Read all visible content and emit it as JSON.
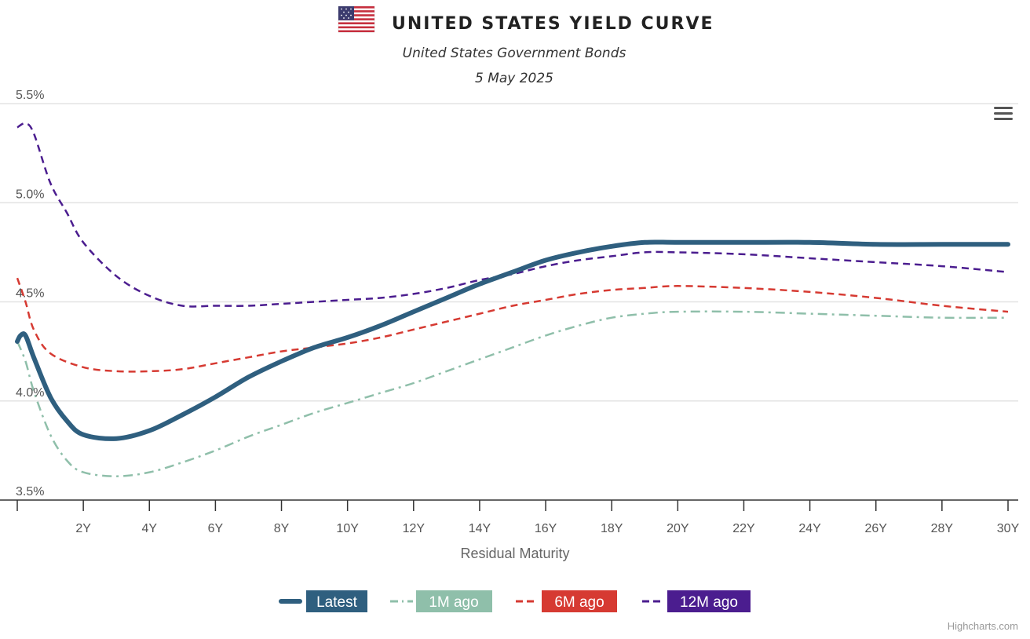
{
  "chart_data": {
    "type": "line",
    "title": "UNITED STATES YIELD CURVE",
    "subtitle": "United States Government Bonds",
    "date": "5 May 2025",
    "xlabel": "Residual Maturity",
    "ylabel": "",
    "xlim": [
      0,
      30
    ],
    "ylim": [
      3.5,
      5.5
    ],
    "x_ticks": [
      2,
      4,
      6,
      8,
      10,
      12,
      14,
      16,
      18,
      20,
      22,
      24,
      26,
      28,
      30
    ],
    "x_tick_labels": [
      "2Y",
      "4Y",
      "6Y",
      "8Y",
      "10Y",
      "12Y",
      "14Y",
      "16Y",
      "18Y",
      "20Y",
      "22Y",
      "24Y",
      "26Y",
      "28Y",
      "30Y"
    ],
    "y_ticks": [
      3.5,
      4.0,
      4.5,
      5.0,
      5.5
    ],
    "y_tick_labels": [
      "3.5%",
      "4.0%",
      "4.5%",
      "5.0%",
      "5.5%"
    ],
    "grid": "horizontal",
    "legend_position": "bottom-center",
    "series": [
      {
        "name": "Latest",
        "color": "#2f5f7f",
        "style": "solid",
        "x": [
          0,
          0.1,
          0.25,
          0.5,
          1,
          1.5,
          2,
          3,
          4,
          5,
          6,
          7,
          8,
          9,
          10,
          11,
          12,
          13,
          14,
          15,
          16,
          17,
          18,
          19,
          20,
          22,
          24,
          26,
          28,
          30
        ],
        "y": [
          4.3,
          4.33,
          4.33,
          4.22,
          4.02,
          3.9,
          3.83,
          3.81,
          3.85,
          3.93,
          4.02,
          4.12,
          4.2,
          4.27,
          4.32,
          4.38,
          4.45,
          4.52,
          4.59,
          4.65,
          4.71,
          4.75,
          4.78,
          4.8,
          4.8,
          4.8,
          4.8,
          4.79,
          4.79,
          4.79
        ]
      },
      {
        "name": "1M ago",
        "color": "#8fbfaa",
        "style": "dash-dot",
        "x": [
          0,
          0.25,
          0.5,
          1,
          1.5,
          2,
          3,
          4,
          5,
          6,
          7,
          8,
          9,
          10,
          11,
          12,
          13,
          14,
          15,
          16,
          17,
          18,
          19,
          20,
          22,
          24,
          26,
          28,
          30
        ],
        "y": [
          4.3,
          4.2,
          4.05,
          3.83,
          3.7,
          3.64,
          3.62,
          3.64,
          3.69,
          3.75,
          3.82,
          3.88,
          3.94,
          3.99,
          4.04,
          4.09,
          4.15,
          4.21,
          4.27,
          4.33,
          4.38,
          4.42,
          4.44,
          4.45,
          4.45,
          4.44,
          4.43,
          4.42,
          4.42
        ]
      },
      {
        "name": "6M ago",
        "color": "#d63a32",
        "style": "dash",
        "x": [
          0,
          0.25,
          0.5,
          1,
          2,
          3,
          4,
          5,
          6,
          7,
          8,
          9,
          10,
          11,
          12,
          13,
          14,
          15,
          16,
          17,
          18,
          19,
          20,
          22,
          24,
          26,
          28,
          30
        ],
        "y": [
          4.62,
          4.5,
          4.36,
          4.24,
          4.17,
          4.15,
          4.15,
          4.16,
          4.19,
          4.22,
          4.25,
          4.27,
          4.29,
          4.32,
          4.36,
          4.4,
          4.44,
          4.48,
          4.51,
          4.54,
          4.56,
          4.57,
          4.58,
          4.57,
          4.55,
          4.52,
          4.48,
          4.45
        ]
      },
      {
        "name": "12M ago",
        "color": "#4b1d8f",
        "style": "dash",
        "x": [
          0,
          0.25,
          0.5,
          1,
          1.5,
          2,
          3,
          4,
          5,
          6,
          7,
          8,
          9,
          10,
          11,
          12,
          13,
          14,
          15,
          16,
          17,
          18,
          19,
          20,
          22,
          24,
          26,
          28,
          30
        ],
        "y": [
          5.38,
          5.4,
          5.35,
          5.1,
          4.95,
          4.8,
          4.63,
          4.53,
          4.48,
          4.48,
          4.48,
          4.49,
          4.5,
          4.51,
          4.52,
          4.54,
          4.57,
          4.61,
          4.64,
          4.68,
          4.71,
          4.73,
          4.75,
          4.75,
          4.74,
          4.72,
          4.7,
          4.68,
          4.65
        ]
      }
    ]
  },
  "toolbar": {
    "menu_icon": "hamburger-menu-icon"
  },
  "flag": {
    "icon": "us-flag-icon"
  },
  "credits": "Highcharts.com"
}
